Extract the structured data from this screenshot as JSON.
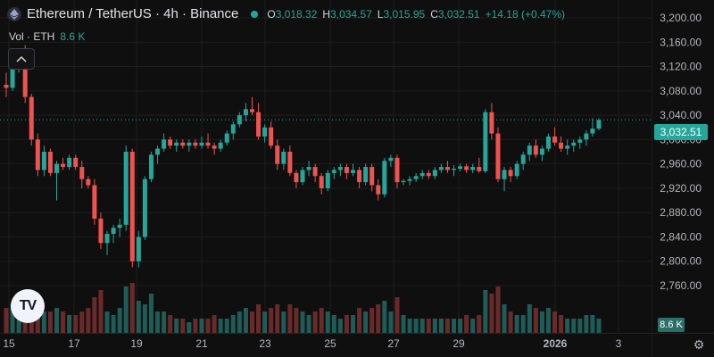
{
  "header": {
    "title": "Ethereum / TetherUS · 4h · Binance",
    "open_label": "O",
    "open_value": "3,018.32",
    "high_label": "H",
    "high_value": "3,034.57",
    "low_label": "L",
    "low_value": "3,015.95",
    "close_label": "C",
    "close_value": "3,032.51",
    "change": "+14.18 (+0.47%)"
  },
  "volume": {
    "label": "Vol · ETH",
    "value": "8.6 K",
    "axis_tag": "8.6 K"
  },
  "colors": {
    "up": "#26a69a",
    "down": "#ef5350",
    "background": "#0f0f0f",
    "grid": "#1e1e1e"
  },
  "icons": {
    "logo": "tradingview-logo-icon",
    "collapse": "chevron-up-icon",
    "settings": "gear-icon"
  },
  "logo_text": "TV",
  "chart_data": {
    "type": "candlestick",
    "current_price": "3,032.51",
    "y_ticks": [
      "3,200.00",
      "3,160.00",
      "3,120.00",
      "3,080.00",
      "3,040.00",
      "3,000.00",
      "2,960.00",
      "2,920.00",
      "2,880.00",
      "2,840.00",
      "2,800.00",
      "2,760.00"
    ],
    "y_tick_values": [
      3200,
      3160,
      3120,
      3080,
      3040,
      3000,
      2960,
      2920,
      2880,
      2840,
      2800,
      2760
    ],
    "x_ticks": [
      "15",
      "17",
      "19",
      "21",
      "23",
      "25",
      "27",
      "29",
      "2026",
      "3"
    ],
    "candles_ohlcv": [
      [
        3090,
        3110,
        3070,
        3085,
        3.5
      ],
      [
        3085,
        3130,
        3080,
        3125,
        4.0
      ],
      [
        3125,
        3150,
        3110,
        3140,
        3.0
      ],
      [
        3140,
        3155,
        3060,
        3070,
        4.5
      ],
      [
        3070,
        3075,
        2990,
        3000,
        5.5
      ],
      [
        3000,
        3010,
        2940,
        2950,
        5.0
      ],
      [
        2950,
        2990,
        2940,
        2980,
        3.0
      ],
      [
        2980,
        2985,
        2940,
        2945,
        3.0
      ],
      [
        2945,
        2965,
        2900,
        2960,
        3.5
      ],
      [
        2960,
        2970,
        2950,
        2955,
        3.0
      ],
      [
        2955,
        2975,
        2950,
        2970,
        2.5
      ],
      [
        2970,
        2975,
        2950,
        2955,
        2.5
      ],
      [
        2955,
        2965,
        2920,
        2935,
        3.0
      ],
      [
        2935,
        2940,
        2920,
        2925,
        3.5
      ],
      [
        2925,
        2935,
        2860,
        2870,
        5.0
      ],
      [
        2870,
        2880,
        2820,
        2830,
        6.0
      ],
      [
        2830,
        2850,
        2810,
        2845,
        3.0
      ],
      [
        2845,
        2860,
        2830,
        2855,
        2.5
      ],
      [
        2855,
        2870,
        2840,
        2860,
        3.5
      ],
      [
        2860,
        2990,
        2850,
        2980,
        6.5
      ],
      [
        2980,
        2985,
        2790,
        2800,
        7.0
      ],
      [
        2800,
        2850,
        2790,
        2840,
        4.5
      ],
      [
        2840,
        2940,
        2835,
        2935,
        4.0
      ],
      [
        2935,
        2980,
        2930,
        2975,
        5.5
      ],
      [
        2975,
        2990,
        2960,
        2985,
        3.0
      ],
      [
        2985,
        3010,
        2980,
        3000,
        3.0
      ],
      [
        3000,
        3005,
        2985,
        2990,
        2.5
      ],
      [
        2990,
        3000,
        2980,
        2995,
        2.0
      ],
      [
        2995,
        3000,
        2985,
        2990,
        2.0
      ],
      [
        2990,
        3000,
        2980,
        2995,
        1.5
      ],
      [
        2995,
        3000,
        2985,
        2990,
        2.0
      ],
      [
        2990,
        3005,
        2985,
        2995,
        2.0
      ],
      [
        2995,
        3010,
        2985,
        2990,
        2.0
      ],
      [
        2990,
        2995,
        2975,
        2985,
        2.5
      ],
      [
        2985,
        3000,
        2980,
        2995,
        2.0
      ],
      [
        2995,
        3015,
        2990,
        3010,
        2.0
      ],
      [
        3010,
        3030,
        3000,
        3025,
        2.5
      ],
      [
        3025,
        3045,
        3020,
        3040,
        3.0
      ],
      [
        3040,
        3060,
        3030,
        3050,
        3.5
      ],
      [
        3050,
        3070,
        3040,
        3045,
        3.0
      ],
      [
        3045,
        3060,
        3000,
        3005,
        4.0
      ],
      [
        3005,
        3025,
        2995,
        3020,
        3.0
      ],
      [
        3020,
        3030,
        2985,
        2990,
        3.5
      ],
      [
        2990,
        3000,
        2950,
        2960,
        4.0
      ],
      [
        2960,
        2985,
        2950,
        2980,
        3.0
      ],
      [
        2980,
        2990,
        2940,
        2945,
        4.0
      ],
      [
        2945,
        2950,
        2920,
        2930,
        3.5
      ],
      [
        2930,
        2955,
        2925,
        2950,
        3.0
      ],
      [
        2950,
        2965,
        2940,
        2955,
        2.5
      ],
      [
        2955,
        2960,
        2930,
        2940,
        3.0
      ],
      [
        2940,
        2945,
        2910,
        2920,
        3.5
      ],
      [
        2920,
        2950,
        2915,
        2945,
        3.0
      ],
      [
        2945,
        2955,
        2935,
        2950,
        2.5
      ],
      [
        2950,
        2960,
        2940,
        2955,
        2.0
      ],
      [
        2955,
        2960,
        2935,
        2945,
        2.5
      ],
      [
        2945,
        2960,
        2940,
        2950,
        2.5
      ],
      [
        2950,
        2955,
        2920,
        2930,
        3.5
      ],
      [
        2930,
        2960,
        2925,
        2955,
        3.0
      ],
      [
        2955,
        2960,
        2915,
        2925,
        3.5
      ],
      [
        2925,
        2935,
        2900,
        2910,
        4.0
      ],
      [
        2910,
        2970,
        2905,
        2965,
        4.5
      ],
      [
        2965,
        2975,
        2955,
        2970,
        3.0
      ],
      [
        2970,
        2975,
        2920,
        2930,
        5.0
      ],
      [
        2930,
        2935,
        2925,
        2932,
        2.5
      ],
      [
        2932,
        2940,
        2925,
        2935,
        2.0
      ],
      [
        2935,
        2945,
        2930,
        2940,
        2.0
      ],
      [
        2940,
        2950,
        2935,
        2945,
        2.0
      ],
      [
        2945,
        2950,
        2935,
        2940,
        2.0
      ],
      [
        2940,
        2955,
        2935,
        2950,
        2.0
      ],
      [
        2950,
        2960,
        2945,
        2955,
        2.0
      ],
      [
        2955,
        2965,
        2945,
        2950,
        2.0
      ],
      [
        2950,
        2958,
        2940,
        2952,
        2.0
      ],
      [
        2952,
        2960,
        2948,
        2956,
        2.0
      ],
      [
        2956,
        2960,
        2945,
        2950,
        2.5
      ],
      [
        2950,
        2960,
        2945,
        2955,
        2.0
      ],
      [
        2955,
        2970,
        2945,
        2948,
        2.5
      ],
      [
        2948,
        3050,
        2945,
        3045,
        6.0
      ],
      [
        3045,
        3060,
        3000,
        3010,
        5.5
      ],
      [
        3010,
        3020,
        2930,
        2935,
        6.5
      ],
      [
        2935,
        2955,
        2915,
        2950,
        4.0
      ],
      [
        2950,
        2955,
        2930,
        2940,
        3.0
      ],
      [
        2940,
        2965,
        2935,
        2960,
        2.5
      ],
      [
        2960,
        2980,
        2950,
        2975,
        2.5
      ],
      [
        2975,
        2995,
        2965,
        2990,
        4.0
      ],
      [
        2990,
        3000,
        2970,
        2975,
        3.5
      ],
      [
        2975,
        2990,
        2965,
        2985,
        3.0
      ],
      [
        2985,
        3010,
        2980,
        3005,
        3.5
      ],
      [
        3005,
        3020,
        2990,
        2995,
        3.0
      ],
      [
        2995,
        3005,
        2980,
        2985,
        2.5
      ],
      [
        2985,
        3000,
        2975,
        2990,
        2.0
      ],
      [
        2990,
        3000,
        2980,
        2995,
        2.0
      ],
      [
        2995,
        3005,
        2985,
        3000,
        2.0
      ],
      [
        3000,
        3015,
        2990,
        3010,
        2.5
      ],
      [
        3010,
        3035,
        3005,
        3018,
        2.5
      ],
      [
        3018,
        3035,
        3015,
        3032,
        2.0
      ]
    ]
  }
}
